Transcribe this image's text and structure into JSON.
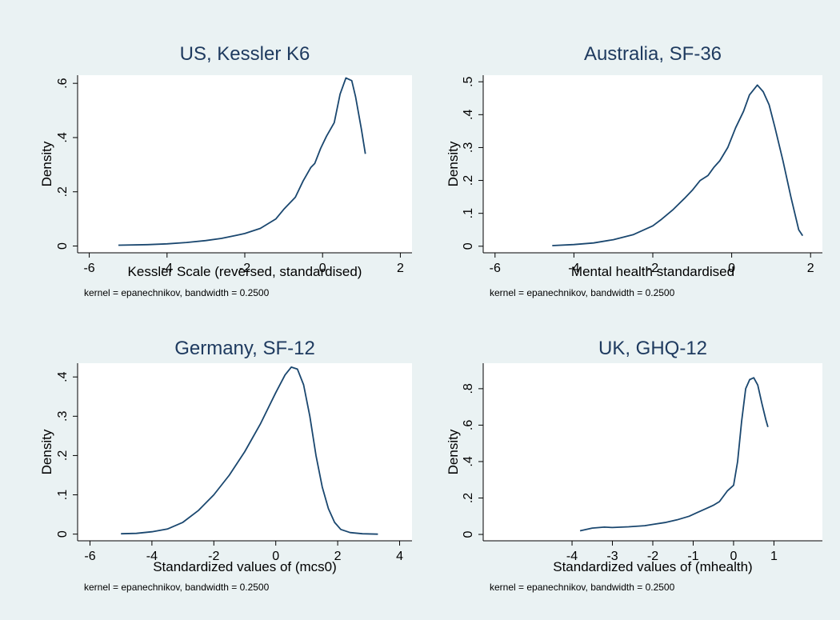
{
  "figure": {
    "background": "#eaf2f3",
    "plot_background": "#ffffff",
    "line_color": "#1a476f",
    "title_color": "#1e3a5f"
  },
  "chart_data": [
    {
      "type": "line",
      "title": "US, Kessler K6",
      "xlabel": "Kessler Scale (reversed, standardised)",
      "ylabel": "Density",
      "note": "kernel = epanechnikov, bandwidth = 0.2500",
      "xlim": [
        -6.3,
        2.3
      ],
      "ylim": [
        -0.025,
        0.63
      ],
      "xticks": [
        -6,
        -4,
        -2,
        0,
        2
      ],
      "xtick_labels": [
        "-6",
        "-4",
        "-2",
        "0",
        "2"
      ],
      "yticks": [
        0,
        0.2,
        0.4,
        0.6
      ],
      "ytick_labels": [
        "0",
        ".2",
        ".4",
        ".6"
      ],
      "series": [
        {
          "x": [
            -5.25,
            -4.5,
            -4.0,
            -3.5,
            -3.0,
            -2.6,
            -2.2,
            -2.0,
            -1.6,
            -1.2,
            -1.0,
            -0.8,
            -0.7,
            -0.5,
            -0.3,
            -0.2,
            -0.05,
            0.1,
            0.3,
            0.45,
            0.6,
            0.75,
            0.85,
            1.0,
            1.1
          ],
          "y": [
            0.003,
            0.005,
            0.008,
            0.013,
            0.02,
            0.028,
            0.04,
            0.046,
            0.065,
            0.1,
            0.135,
            0.165,
            0.18,
            0.24,
            0.29,
            0.305,
            0.36,
            0.405,
            0.455,
            0.56,
            0.62,
            0.61,
            0.55,
            0.43,
            0.34
          ]
        }
      ]
    },
    {
      "type": "line",
      "title": "Australia, SF-36",
      "xlabel": "Mental health standardised",
      "ylabel": "Density",
      "note": "kernel = epanechnikov, bandwidth = 0.2500",
      "xlim": [
        -6.3,
        2.3
      ],
      "ylim": [
        -0.02,
        0.52
      ],
      "xticks": [
        -6,
        -4,
        -2,
        0,
        2
      ],
      "xtick_labels": [
        "-6",
        "-4",
        "-2",
        "0",
        "2"
      ],
      "yticks": [
        0,
        0.1,
        0.2,
        0.3,
        0.4,
        0.5
      ],
      "ytick_labels": [
        "0",
        ".1",
        ".2",
        ".3",
        ".4",
        ".5"
      ],
      "series": [
        {
          "x": [
            -4.55,
            -4.0,
            -3.5,
            -3.0,
            -2.5,
            -2.0,
            -1.8,
            -1.5,
            -1.2,
            -1.0,
            -0.8,
            -0.6,
            -0.45,
            -0.3,
            -0.1,
            0.1,
            0.3,
            0.45,
            0.65,
            0.8,
            0.95,
            1.1,
            1.3,
            1.5,
            1.7,
            1.8
          ],
          "y": [
            0.002,
            0.005,
            0.01,
            0.02,
            0.035,
            0.062,
            0.08,
            0.11,
            0.145,
            0.17,
            0.2,
            0.215,
            0.24,
            0.26,
            0.3,
            0.36,
            0.41,
            0.46,
            0.49,
            0.47,
            0.43,
            0.36,
            0.26,
            0.15,
            0.05,
            0.032
          ]
        }
      ]
    },
    {
      "type": "line",
      "title": "Germany, SF-12",
      "xlabel": "Standardized values of (mcs0)",
      "ylabel": "Density",
      "note": "kernel = epanechnikov, bandwidth = 0.2500",
      "xlim": [
        -6.4,
        4.4
      ],
      "ylim": [
        -0.017,
        0.435
      ],
      "xticks": [
        -6,
        -4,
        -2,
        0,
        2,
        4
      ],
      "xtick_labels": [
        "-6",
        "-4",
        "-2",
        "0",
        "2",
        "4"
      ],
      "yticks": [
        0,
        0.1,
        0.2,
        0.3,
        0.4
      ],
      "ytick_labels": [
        "0",
        ".1",
        ".2",
        ".3",
        ".4"
      ],
      "series": [
        {
          "x": [
            -5.0,
            -4.5,
            -4.0,
            -3.5,
            -3.0,
            -2.5,
            -2.0,
            -1.5,
            -1.0,
            -0.5,
            0.0,
            0.3,
            0.5,
            0.7,
            0.9,
            1.1,
            1.3,
            1.5,
            1.7,
            1.9,
            2.1,
            2.4,
            2.8,
            3.3
          ],
          "y": [
            0.001,
            0.002,
            0.006,
            0.013,
            0.03,
            0.06,
            0.1,
            0.15,
            0.21,
            0.28,
            0.36,
            0.405,
            0.425,
            0.42,
            0.38,
            0.3,
            0.2,
            0.12,
            0.065,
            0.03,
            0.012,
            0.004,
            0.001,
            0.0
          ]
        }
      ]
    },
    {
      "type": "line",
      "title": "UK, GHQ-12",
      "xlabel": "Standardized values of (mhealth)",
      "ylabel": "Density",
      "note": "kernel = epanechnikov, bandwidth = 0.2500",
      "xlim": [
        -6.2,
        2.2
      ],
      "ylim": [
        -0.035,
        0.94
      ],
      "xticks": [
        -4,
        -3,
        -2,
        -1,
        0,
        1
      ],
      "xtick_labels": [
        "-4",
        "-3",
        "-2",
        "-1",
        "0",
        "1"
      ],
      "yticks": [
        0,
        0.2,
        0.4,
        0.6,
        0.8
      ],
      "ytick_labels": [
        "0",
        ".2",
        ".4",
        ".6",
        ".8"
      ],
      "series": [
        {
          "x": [
            -3.8,
            -3.5,
            -3.2,
            -3.0,
            -2.6,
            -2.2,
            -2.0,
            -1.7,
            -1.4,
            -1.1,
            -0.9,
            -0.7,
            -0.5,
            -0.35,
            -0.15,
            0.0,
            0.1,
            0.2,
            0.3,
            0.4,
            0.5,
            0.6,
            0.7,
            0.8,
            0.85
          ],
          "y": [
            0.02,
            0.035,
            0.04,
            0.038,
            0.042,
            0.048,
            0.055,
            0.065,
            0.08,
            0.1,
            0.12,
            0.14,
            0.16,
            0.18,
            0.24,
            0.27,
            0.4,
            0.62,
            0.8,
            0.85,
            0.86,
            0.82,
            0.72,
            0.63,
            0.59
          ]
        }
      ]
    }
  ]
}
